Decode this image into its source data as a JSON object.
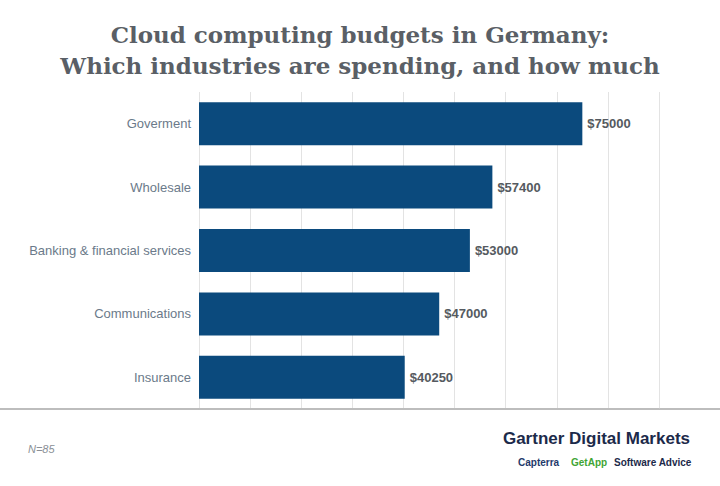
{
  "chart_data": {
    "type": "bar",
    "title": "Cloud computing budgets in Germany:\nWhich industries are spending, and how much",
    "orientation": "horizontal",
    "categories": [
      "Goverment",
      "Wholesale",
      "Banking & financial services",
      "Communications",
      "Insurance"
    ],
    "values": [
      75000,
      57400,
      53000,
      47000,
      40250
    ],
    "value_labels": [
      "$75000",
      "$57400",
      "$53000",
      "$47000",
      "$40250"
    ],
    "data_labels": true,
    "color": "#0b4a7d",
    "xlim": [
      0,
      90000
    ],
    "xticks": [
      0,
      10000,
      20000,
      30000,
      40000,
      50000,
      60000,
      70000,
      80000,
      90000
    ],
    "grid": true,
    "tick_labels": "y",
    "annotations": [
      "N=85",
      "Gartner Digital Markets",
      "Capterra",
      "GetApp",
      "Software Advice"
    ]
  }
}
